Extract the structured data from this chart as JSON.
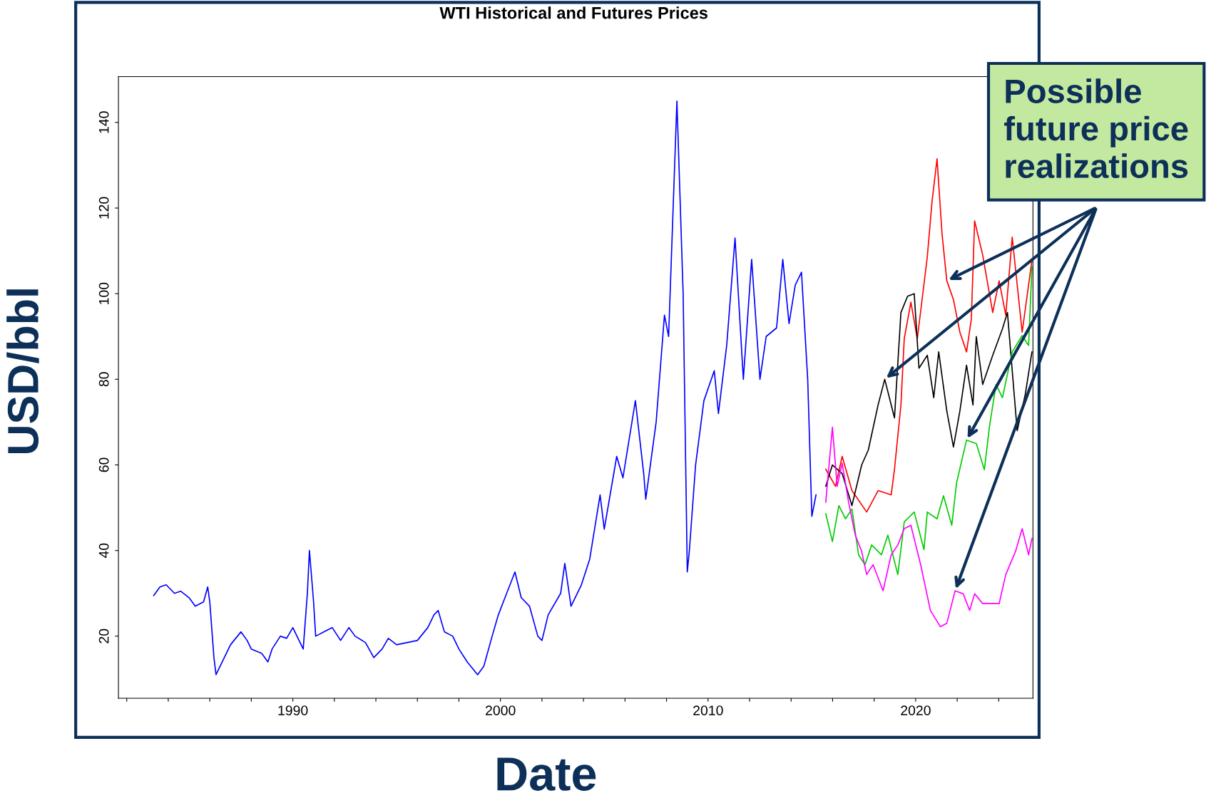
{
  "chart_data": {
    "type": "line",
    "title": "WTI Historical and Futures Prices",
    "xlabel": "Date",
    "ylabel": "USD/bbl",
    "annotations": [
      "Possible\nfuture price\nrealizations"
    ],
    "xlim": [
      1981.6,
      2025.65
    ],
    "ylim": [
      5.5,
      150.7
    ],
    "xticks": [
      {
        "value": 1982,
        "label": null
      },
      {
        "value": 1984,
        "label": null
      },
      {
        "value": 1986,
        "label": null
      },
      {
        "value": 1988,
        "label": null
      },
      1990,
      {
        "value": 1992,
        "label": null
      },
      {
        "value": 1994,
        "label": null
      },
      {
        "value": 1996,
        "label": null
      },
      {
        "value": 1998,
        "label": null
      },
      2000,
      {
        "value": 2002,
        "label": null
      },
      {
        "value": 2004,
        "label": null
      },
      {
        "value": 2006,
        "label": null
      },
      {
        "value": 2008,
        "label": null
      },
      2010,
      {
        "value": 2012,
        "label": null
      },
      {
        "value": 2014,
        "label": null
      },
      {
        "value": 2016,
        "label": null
      },
      {
        "value": 2018,
        "label": null
      },
      2020,
      {
        "value": 2022,
        "label": null
      },
      {
        "value": 2024,
        "label": null
      }
    ],
    "yticks": [
      20,
      40,
      60,
      80,
      100,
      120,
      140
    ],
    "grid": false,
    "legend": false,
    "marker": "none",
    "line_style": "solid",
    "series": [
      {
        "color": "#0000ff",
        "x": [
          1983.3,
          1983.6,
          1983.9,
          1984.3,
          1984.6,
          1985.0,
          1985.3,
          1985.7,
          1985.9,
          1986.0,
          1986.2,
          1986.3,
          1986.5,
          1986.7,
          1987.0,
          1987.5,
          1987.8,
          1988.0,
          1988.5,
          1988.8,
          1989.0,
          1989.4,
          1989.7,
          1990.0,
          1990.3,
          1990.5,
          1990.7,
          1990.8,
          1991.0,
          1991.1,
          1991.5,
          1991.9,
          1992.3,
          1992.7,
          1993.0,
          1993.5,
          1993.9,
          1994.3,
          1994.6,
          1995.0,
          1995.5,
          1996.0,
          1996.5,
          1996.8,
          1997.0,
          1997.3,
          1997.7,
          1998.0,
          1998.4,
          1998.9,
          1999.2,
          1999.6,
          1999.9,
          2000.3,
          2000.7,
          2001.0,
          2001.4,
          2001.8,
          2002.0,
          2002.3,
          2002.9,
          2003.1,
          2003.4,
          2003.9,
          2004.3,
          2004.8,
          2005.0,
          2005.6,
          2005.9,
          2006.5,
          2006.9,
          2007.0,
          2007.5,
          2007.9,
          2008.1,
          2008.5,
          2008.8,
          2009.0,
          2009.1,
          2009.4,
          2009.8,
          2010.3,
          2010.5,
          2010.9,
          2011.3,
          2011.7,
          2012.1,
          2012.5,
          2012.8,
          2013.3,
          2013.6,
          2013.9,
          2014.2,
          2014.5,
          2014.8,
          2015.0,
          2015.2
        ],
        "values": [
          29.5,
          31.5,
          32,
          30,
          30.5,
          29,
          27,
          28,
          31.5,
          28,
          15,
          11,
          13,
          15,
          18,
          21,
          19,
          17,
          16,
          14,
          17,
          20,
          19.5,
          22,
          19,
          17,
          30,
          40,
          28,
          20,
          21,
          22,
          19,
          22,
          20,
          18.5,
          15,
          17,
          19.5,
          18,
          18.5,
          19,
          22,
          25,
          26,
          21,
          20,
          17,
          14,
          11,
          13,
          20,
          25,
          30,
          35,
          29,
          27,
          20,
          19,
          25,
          30,
          37,
          27,
          32,
          38,
          53,
          45,
          62,
          57,
          75,
          58,
          52,
          70,
          95,
          90,
          145,
          100,
          35,
          40,
          60,
          75,
          82,
          72,
          88,
          113,
          80,
          108,
          80,
          90,
          92,
          108,
          93,
          102,
          105,
          80,
          48,
          53
        ]
      },
      {
        "color": "#ff0000",
        "x": [
          2015.67,
          2016.14,
          2016.46,
          2016.93,
          2017.64,
          2018.19,
          2018.82,
          2018.98,
          2019.29,
          2019.45,
          2019.77,
          2020.08,
          2020.56,
          2020.79,
          2021.03,
          2021.27,
          2021.5,
          2021.82,
          2022.13,
          2022.45,
          2022.68,
          2022.84,
          2023.23,
          2023.71,
          2024.02,
          2024.34,
          2024.65,
          2025.13,
          2025.6
        ],
        "values": [
          59,
          55,
          62,
          54,
          49,
          54,
          53,
          59,
          74,
          89.5,
          98,
          89.5,
          108.6,
          121.6,
          131.5,
          114,
          103,
          98.6,
          91,
          86.4,
          94,
          117,
          109,
          95.6,
          103,
          95,
          113.2,
          91,
          107.8
        ]
      },
      {
        "color": "#000000",
        "x": [
          2015.67,
          2015.99,
          2016.46,
          2016.93,
          2017.4,
          2017.72,
          2018.19,
          2018.51,
          2018.98,
          2019.29,
          2019.61,
          2019.93,
          2020.16,
          2020.56,
          2020.87,
          2021.11,
          2021.5,
          2021.82,
          2022.13,
          2022.45,
          2022.76,
          2022.92,
          2023.23,
          2023.71,
          2024.18,
          2024.42,
          2024.89,
          2025.28,
          2025.6
        ],
        "values": [
          55,
          60,
          58,
          50.5,
          60,
          63.5,
          74,
          80,
          71,
          95.6,
          99.4,
          100,
          82.6,
          85.6,
          75.7,
          86.4,
          72.6,
          64.2,
          72.6,
          83.3,
          74,
          90,
          78.8,
          85.6,
          91.8,
          95.6,
          68,
          76.5,
          86.4
        ]
      },
      {
        "color": "#00cc00",
        "x": [
          2015.67,
          2015.99,
          2016.3,
          2016.62,
          2016.93,
          2017.25,
          2017.56,
          2017.88,
          2018.35,
          2018.66,
          2019.14,
          2019.45,
          2019.93,
          2020.4,
          2020.56,
          2021.03,
          2021.34,
          2021.74,
          2021.97,
          2022.45,
          2022.92,
          2023.31,
          2023.55,
          2023.87,
          2024.18,
          2024.65,
          2025.13,
          2025.44,
          2025.6
        ],
        "values": [
          48.6,
          42.1,
          50.5,
          47.4,
          49.7,
          39,
          36.7,
          41.3,
          39,
          43.6,
          34.4,
          46.7,
          49,
          40.2,
          49,
          47.4,
          52.8,
          45.9,
          55.8,
          65.8,
          65,
          58.9,
          68.8,
          78.8,
          75.7,
          86.4,
          90.2,
          87.9,
          106.3
        ]
      },
      {
        "color": "#ff00ff",
        "x": [
          2015.67,
          2015.99,
          2016.22,
          2016.46,
          2016.77,
          2017.09,
          2017.4,
          2017.64,
          2017.95,
          2018.43,
          2018.82,
          2019.14,
          2019.45,
          2019.77,
          2020.24,
          2020.71,
          2021.19,
          2021.5,
          2021.9,
          2022.29,
          2022.6,
          2022.84,
          2023.23,
          2024.02,
          2024.34,
          2024.81,
          2025.13,
          2025.44,
          2025.6
        ],
        "values": [
          51.3,
          68.8,
          55,
          60.4,
          51.3,
          43.6,
          39.8,
          34.4,
          36.7,
          30.6,
          39,
          41.3,
          45.1,
          45.9,
          36.7,
          26,
          22.2,
          23,
          30.6,
          29.9,
          26,
          29.9,
          27.6,
          27.6,
          34.4,
          39.8,
          45.1,
          39,
          42.8
        ]
      }
    ]
  }
}
